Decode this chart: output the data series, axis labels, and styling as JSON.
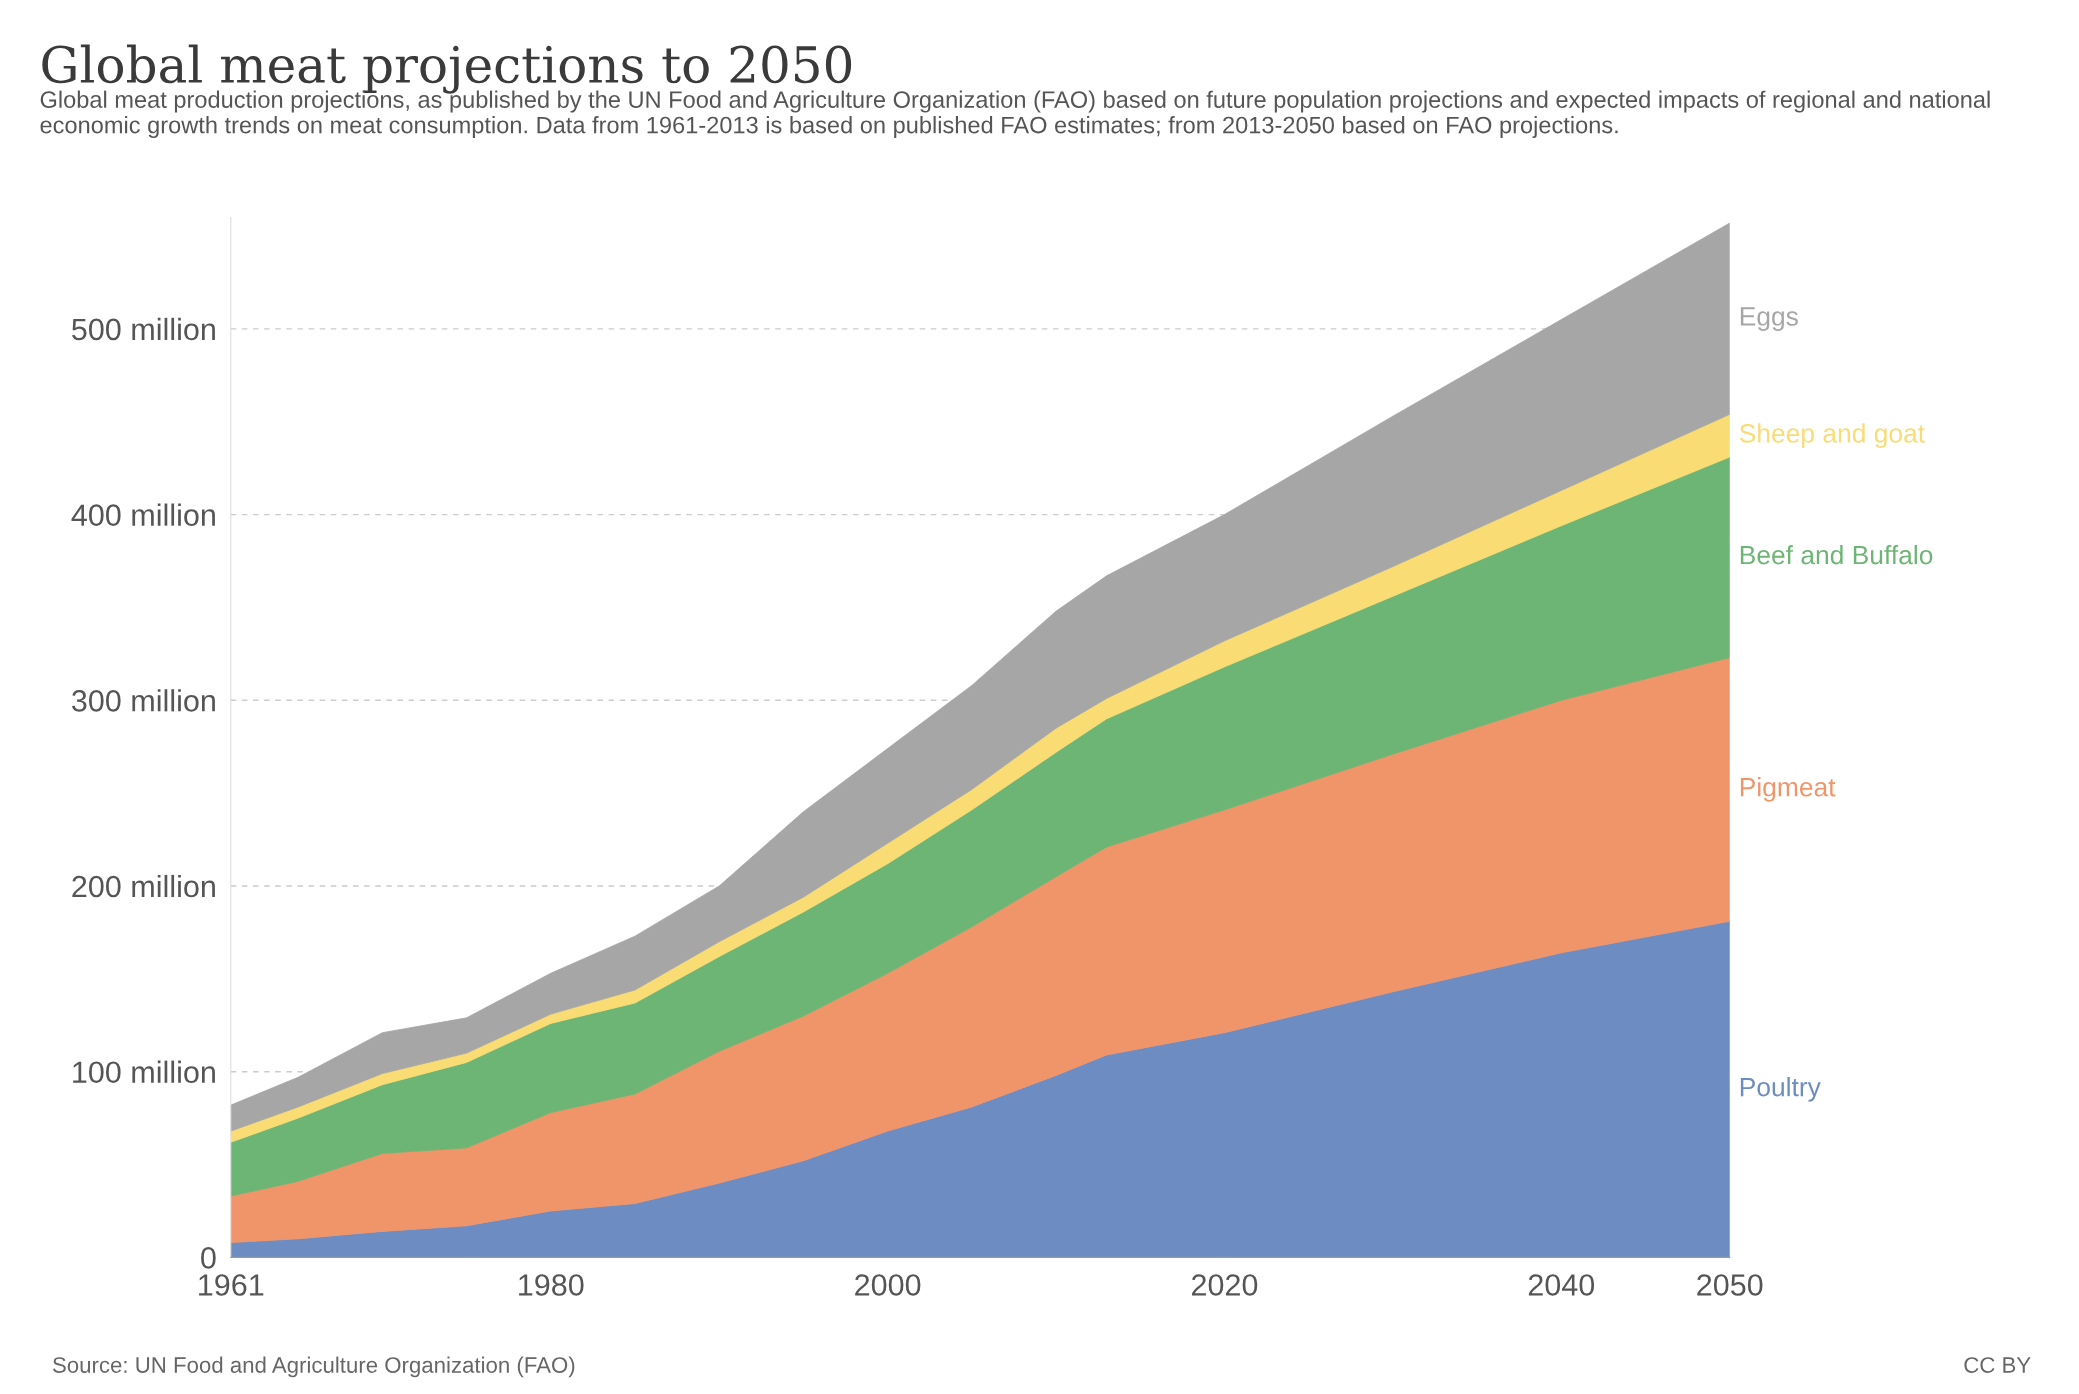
{
  "chart_data": {
    "type": "area",
    "stacked": true,
    "title": "Global meat projections to 2050",
    "subtitle": "Global meat production projections, as published by the UN Food and Agriculture Organization (FAO) based on future population projections and expected impacts of regional and national economic growth trends on meat consumption. Data from 1961-2013 is based on published FAO estimates; from 2013-2050 based on FAO projections.",
    "x": [
      1961,
      1965,
      1970,
      1975,
      1980,
      1985,
      1990,
      1995,
      2000,
      2005,
      2010,
      2013,
      2020,
      2030,
      2040,
      2050
    ],
    "series": [
      {
        "name": "Poultry",
        "color": "#6d8cc2",
        "values": [
          8,
          10,
          14,
          17,
          25,
          29,
          40,
          52,
          68,
          81,
          98,
          109,
          121,
          143,
          164,
          181
        ]
      },
      {
        "name": "Pigmeat",
        "color": "#f0956a",
        "values": [
          25,
          31,
          42,
          42,
          53,
          59,
          71,
          78,
          85,
          97,
          107,
          112,
          120,
          128,
          136,
          142
        ]
      },
      {
        "name": "Beef and Buffalo",
        "color": "#6db574",
        "values": [
          29,
          34,
          37,
          46,
          48,
          49,
          51,
          56,
          59,
          63,
          67,
          69,
          77,
          85,
          94,
          108
        ]
      },
      {
        "name": "Sheep and goat",
        "color": "#f9dc73",
        "values": [
          6,
          6,
          6,
          5,
          5,
          7,
          8,
          8,
          11,
          11,
          13,
          11,
          14,
          16,
          19,
          23
        ]
      },
      {
        "name": "Eggs",
        "color": "#a6a6a6",
        "values": [
          14,
          16,
          22,
          19,
          22,
          29,
          30,
          46,
          51,
          56,
          63,
          66,
          68,
          81,
          92,
          103
        ]
      }
    ],
    "xlim": [
      1961,
      2050
    ],
    "xticks": [
      1961,
      1980,
      2000,
      2020,
      2040,
      2050
    ],
    "ylim": [
      0,
      560
    ],
    "yticks": [
      0,
      {
        "value": 100,
        "label": "100 million"
      },
      {
        "value": 200,
        "label": "200 million"
      },
      {
        "value": 300,
        "label": "300 million"
      },
      {
        "value": 400,
        "label": "400 million"
      },
      {
        "value": 500,
        "label": "500 million"
      }
    ],
    "grid": "y",
    "legend": false,
    "annotations": [
      "Source: UN Food and Agriculture Organization (FAO)",
      "CC BY"
    ]
  }
}
